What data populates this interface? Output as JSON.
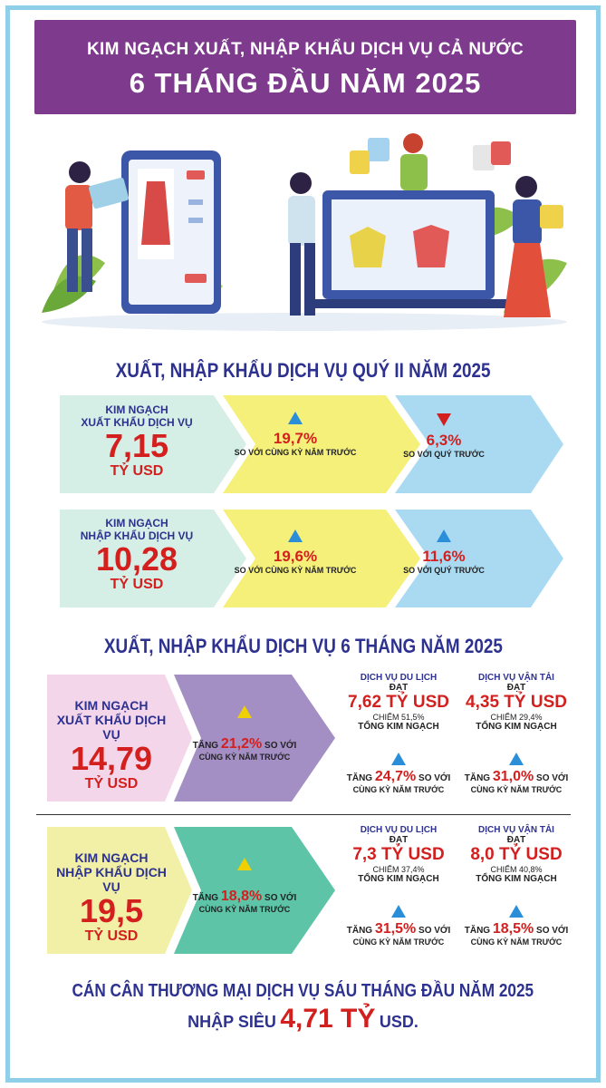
{
  "header": {
    "line1": "KIM NGẠCH XUẤT, NHẬP KHẨU DỊCH VỤ CẢ NƯỚC",
    "line2": "6 THÁNG ĐẦU NĂM 2025"
  },
  "q2": {
    "title": "XUẤT, NHẬP KHẨU DỊCH VỤ QUÝ II NĂM 2025",
    "export": {
      "label1": "KIM NGẠCH",
      "label2": "XUẤT KHẨU DỊCH VỤ",
      "value": "7,15",
      "unit": "TỶ USD",
      "yoy_value": "19,7%",
      "yoy_label": "SO VỚI CÙNG KỲ NĂM TRƯỚC",
      "qoq_value": "6,3%",
      "qoq_label": "SO VỚI QUÝ TRƯỚC"
    },
    "import": {
      "label1": "KIM NGẠCH",
      "label2": "NHẬP KHẨU DỊCH VỤ",
      "value": "10,28",
      "unit": "TỶ USD",
      "yoy_value": "19,6%",
      "yoy_label": "SO VỚI CÙNG KỲ NĂM TRƯỚC",
      "qoq_value": "11,6%",
      "qoq_label": "SO VỚI QUÝ TRƯỚC"
    }
  },
  "h1": {
    "title": "XUẤT, NHẬP KHẨU DỊCH VỤ 6 THÁNG NĂM 2025",
    "export": {
      "label1": "KIM NGẠCH",
      "label2": "XUẤT KHẨU DỊCH VỤ",
      "value": "14,79",
      "unit": "TỶ USD",
      "growth_prefix": "TĂNG",
      "growth_value": "21,2%",
      "growth_suffix": "SO VỚI",
      "growth_label2": "CÙNG KỲ NĂM TRƯỚC",
      "tourism": {
        "title": "DỊCH VỤ DU LỊCH",
        "reach": "ĐẠT",
        "value": "7,62 TỶ USD",
        "share1": "CHIẾM 51,5%",
        "share2": "TỔNG KIM NGẠCH",
        "growth_prefix": "TĂNG",
        "growth_value": "24,7%",
        "growth_suffix": "SO VỚI",
        "growth_label2": "CÙNG KỲ NĂM TRƯỚC"
      },
      "transport": {
        "title": "DỊCH VỤ VẬN TẢI",
        "reach": "ĐẠT",
        "value": "4,35 TỶ USD",
        "share1": "CHIẾM 29,4%",
        "share2": "TỔNG KIM NGẠCH",
        "growth_prefix": "TĂNG",
        "growth_value": "31,0%",
        "growth_suffix": "SO VỚI",
        "growth_label2": "CÙNG KỲ NĂM TRƯỚC"
      }
    },
    "import": {
      "label1": "KIM NGẠCH",
      "label2": "NHẬP KHẨU DỊCH VỤ",
      "value": "19,5",
      "unit": "TỶ USD",
      "growth_prefix": "TĂNG",
      "growth_value": "18,8%",
      "growth_suffix": "SO VỚI",
      "growth_label2": "CÙNG KỲ NĂM TRƯỚC",
      "tourism": {
        "title": "DỊCH VỤ DU LỊCH",
        "reach": "ĐẠT",
        "value": "7,3 TỶ USD",
        "share1": "CHIẾM 37,4%",
        "share2": "TỔNG KIM NGẠCH",
        "growth_prefix": "TĂNG",
        "growth_value": "31,5%",
        "growth_suffix": "SO VỚI",
        "growth_label2": "CÙNG KỲ NĂM TRƯỚC"
      },
      "transport": {
        "title": "DỊCH VỤ VẬN TẢI",
        "reach": "ĐẠT",
        "value": "8,0 TỶ USD",
        "share1": "CHIẾM 40,8%",
        "share2": "TỔNG KIM NGẠCH",
        "growth_prefix": "TĂNG",
        "growth_value": "18,5%",
        "growth_suffix": "SO VỚI",
        "growth_label2": "CÙNG KỲ NĂM TRƯỚC"
      }
    }
  },
  "footer": {
    "line1": "CÁN CÂN THƯƠNG MẠI DỊCH VỤ SÁU THÁNG ĐẦU NĂM 2025",
    "prefix": "NHẬP SIÊU",
    "value": "4,71 TỶ",
    "suffix": "USD."
  },
  "colors": {
    "purple": "#7e3a8c",
    "navy": "#2d3190",
    "red": "#d3201f",
    "yellow": "#f5f07a",
    "light_blue": "#a9daf2",
    "mint": "#d6efe6",
    "pink": "#f3d6ea",
    "lavender": "#a38fc4",
    "teal": "#5ec4a8",
    "cream": "#f1f0a6"
  }
}
